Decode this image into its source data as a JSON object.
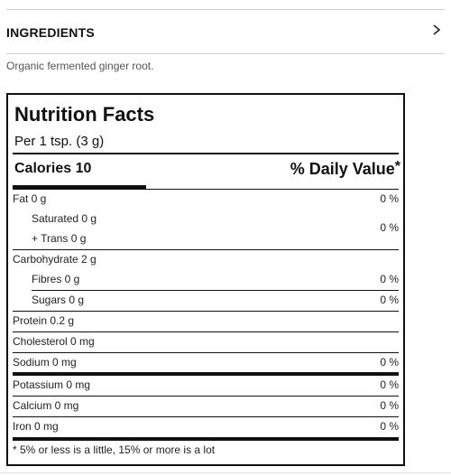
{
  "ingredients": {
    "title": "INGREDIENTS",
    "text": "Organic fermented ginger root."
  },
  "nutrition": {
    "title": "Nutrition Facts",
    "serving": "Per 1 tsp. (3 g)",
    "calories": "Calories 10",
    "daily_value": "% Daily Value",
    "daily_value_mark": "*",
    "rows": {
      "fat": {
        "label": "Fat 0 g",
        "pct": "0 %"
      },
      "saturated": {
        "label": "Saturated 0 g"
      },
      "trans": {
        "label": "+ Trans 0 g"
      },
      "sat_trans_pct": "0 %",
      "carbohydrate": {
        "label": "Carbohydrate 2 g"
      },
      "fibres": {
        "label": "Fibres 0 g",
        "pct": "0 %"
      },
      "sugars": {
        "label": "Sugars 0 g",
        "pct": "0 %"
      },
      "protein": {
        "label": "Protein 0.2 g"
      },
      "cholesterol": {
        "label": "Cholesterol 0 mg"
      },
      "sodium": {
        "label": "Sodium 0 mg",
        "pct": "0 %"
      },
      "potassium": {
        "label": "Potassium 0 mg",
        "pct": "0 %"
      },
      "calcium": {
        "label": "Calcium 0 mg",
        "pct": "0 %"
      },
      "iron": {
        "label": "Iron 0 mg",
        "pct": "0 %"
      }
    },
    "footnote": "* 5% or less is a little, 15% or more is a lot"
  },
  "icons": {
    "ingredients_toggle": "chevron-right-icon"
  }
}
